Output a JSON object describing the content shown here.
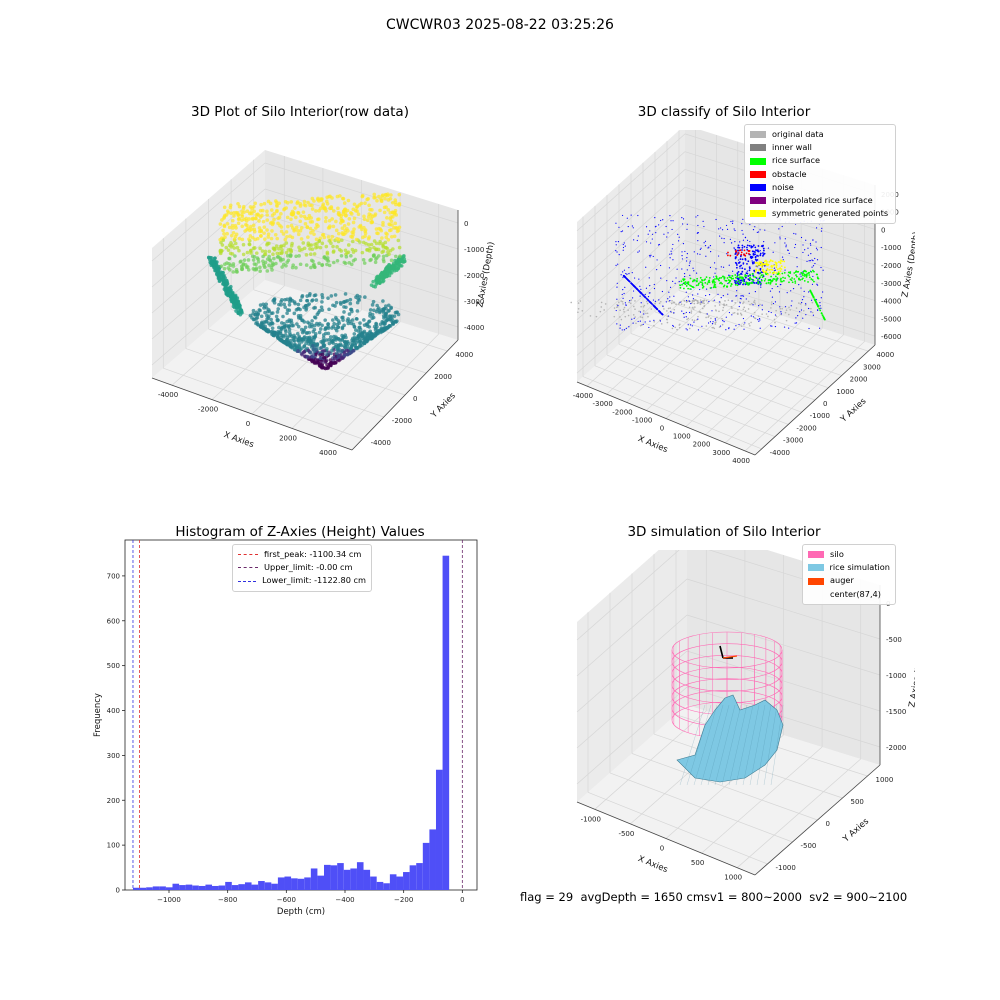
{
  "suptitle": "CWCWR03 2025-08-22 03:25:26",
  "status_text": "flag = 29  avgDepth = 1650 cmsv1 = 800~2000  sv2 = 900~2100",
  "colors": {
    "pane": "#f2f2f2",
    "grid": "#d6d6d6",
    "hist_bar": "#4f4ff7",
    "first_peak": "#e03030",
    "upper_limit": "#6a2a6a",
    "lower_limit": "#3030e0",
    "silo": "#ff69b4",
    "rice_simulation": "#7ec8e3",
    "auger": "#ff4500"
  },
  "chart_data": [
    {
      "type": "scatter",
      "title": "3D Plot of Silo Interior(row data)",
      "xlabel": "X Axies",
      "ylabel": "Y Axies",
      "zlabel": "Z Axies (Depth)",
      "x_ticks": [
        "-4000",
        "-2000",
        "0",
        "2000",
        "4000"
      ],
      "y_ticks": [
        "-4000",
        "-2000",
        "0",
        "2000",
        "4000"
      ],
      "z_ticks": [
        "-4000",
        "-3000",
        "-2000",
        "-1000",
        "0"
      ],
      "colormap": "viridis",
      "x": [
        -4000,
        4000
      ],
      "y": [
        -4000,
        4000
      ],
      "z": [
        -4300,
        0
      ]
    },
    {
      "type": "scatter",
      "title": "3D classify of Silo Interior",
      "xlabel": "X Axies",
      "ylabel": "Y Axies",
      "zlabel": "Z Axies (Depth)",
      "x_ticks": [
        "-4000",
        "-3000",
        "-2000",
        "-1000",
        "0",
        "1000",
        "2000",
        "3000",
        "4000"
      ],
      "y_ticks": [
        "-4000",
        "-3000",
        "-2000",
        "-1000",
        "0",
        "1000",
        "2000",
        "3000",
        "4000"
      ],
      "z_ticks": [
        "-6000",
        "-5000",
        "-4000",
        "-3000",
        "-2000",
        "-1000",
        "0",
        "1000",
        "2000"
      ],
      "legend": [
        {
          "label": "original data",
          "color": "#b4b4b4"
        },
        {
          "label": "inner wall",
          "color": "#808080"
        },
        {
          "label": "rice surface",
          "color": "#00ff00"
        },
        {
          "label": "obstacle",
          "color": "#ff0000"
        },
        {
          "label": "noise",
          "color": "#0000ff"
        },
        {
          "label": "interpolated rice surface",
          "color": "#800080"
        },
        {
          "label": "symmetric generated points",
          "color": "#ffff00"
        }
      ]
    },
    {
      "type": "bar",
      "title": "Histogram of Z-Axies (Height) Values",
      "xlabel": "Depth (cm)",
      "ylabel": "Frequency",
      "xlim": [
        -1150,
        50
      ],
      "ylim": [
        0,
        780
      ],
      "x_ticks": [
        -1000,
        -800,
        -600,
        -400,
        -200,
        0
      ],
      "y_ticks": [
        0,
        100,
        200,
        300,
        400,
        500,
        600,
        700
      ],
      "bin_start": -1122.8,
      "bin_width": 22.456,
      "values": [
        5,
        5,
        6,
        8,
        8,
        6,
        14,
        11,
        12,
        10,
        9,
        12,
        9,
        10,
        18,
        11,
        13,
        17,
        12,
        20,
        17,
        14,
        28,
        30,
        26,
        25,
        28,
        48,
        32,
        56,
        55,
        60,
        45,
        48,
        62,
        45,
        30,
        18,
        15,
        35,
        30,
        40,
        55,
        60,
        105,
        135,
        268,
        745
      ],
      "vlines": [
        {
          "label": "first_peak: -1100.34 cm",
          "x": -1100.34,
          "color": "#e03030"
        },
        {
          "label": "Upper_limit: -0.00 cm",
          "x": 0,
          "color": "#6a2a6a"
        },
        {
          "label": "Lower_limit: -1122.80 cm",
          "x": -1122.8,
          "color": "#3030e0"
        }
      ]
    },
    {
      "type": "other",
      "title": "3D simulation of Silo Interior",
      "xlabel": "X Axies",
      "ylabel": "Y Axies",
      "zlabel": "Z Axies (Depth)",
      "x_ticks": [
        "-1000",
        "-500",
        "0",
        "500",
        "1000"
      ],
      "y_ticks": [
        "-1000",
        "-500",
        "0",
        "500",
        "1000"
      ],
      "z_ticks": [
        "-2000",
        "-1500",
        "-1000",
        "-500",
        "0"
      ],
      "legend": [
        {
          "label": "silo",
          "color": "#ff69b4"
        },
        {
          "label": "rice simulation",
          "color": "#7ec8e3"
        },
        {
          "label": "auger",
          "color": "#ff4500"
        },
        {
          "label": "center(87,4)",
          "color": ""
        }
      ]
    }
  ]
}
